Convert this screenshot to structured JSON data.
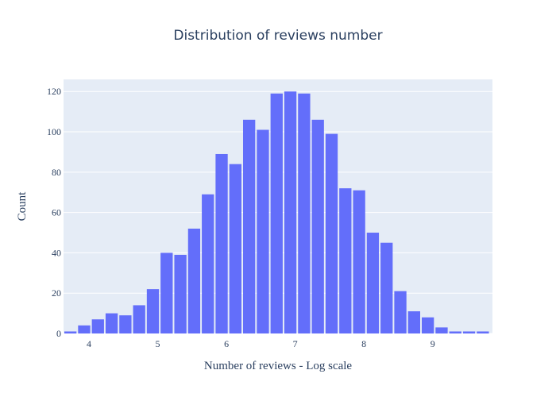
{
  "chart_data": {
    "type": "bar",
    "title": "Distribution of reviews number",
    "xlabel": "Number of reviews - Log scale",
    "ylabel": "Count",
    "xlim": [
      3.63,
      9.87
    ],
    "ylim": [
      0,
      126
    ],
    "bin_width": 0.2,
    "x_ticks": [
      4,
      5,
      6,
      7,
      8,
      9
    ],
    "y_ticks": [
      0,
      20,
      40,
      60,
      80,
      100,
      120
    ],
    "bins": [
      {
        "x0": 3.63,
        "x1": 3.83,
        "count": 1
      },
      {
        "x0": 3.83,
        "x1": 4.03,
        "count": 4
      },
      {
        "x0": 4.03,
        "x1": 4.23,
        "count": 7
      },
      {
        "x0": 4.23,
        "x1": 4.43,
        "count": 10
      },
      {
        "x0": 4.43,
        "x1": 4.63,
        "count": 9
      },
      {
        "x0": 4.63,
        "x1": 4.83,
        "count": 14
      },
      {
        "x0": 4.83,
        "x1": 5.03,
        "count": 22
      },
      {
        "x0": 5.03,
        "x1": 5.23,
        "count": 40
      },
      {
        "x0": 5.23,
        "x1": 5.43,
        "count": 39
      },
      {
        "x0": 5.43,
        "x1": 5.63,
        "count": 52
      },
      {
        "x0": 5.63,
        "x1": 5.83,
        "count": 69
      },
      {
        "x0": 5.83,
        "x1": 6.03,
        "count": 89
      },
      {
        "x0": 6.03,
        "x1": 6.23,
        "count": 84
      },
      {
        "x0": 6.23,
        "x1": 6.43,
        "count": 106
      },
      {
        "x0": 6.43,
        "x1": 6.63,
        "count": 101
      },
      {
        "x0": 6.63,
        "x1": 6.83,
        "count": 119
      },
      {
        "x0": 6.83,
        "x1": 7.03,
        "count": 120
      },
      {
        "x0": 7.03,
        "x1": 7.23,
        "count": 119
      },
      {
        "x0": 7.23,
        "x1": 7.43,
        "count": 106
      },
      {
        "x0": 7.43,
        "x1": 7.63,
        "count": 99
      },
      {
        "x0": 7.63,
        "x1": 7.83,
        "count": 72
      },
      {
        "x0": 7.83,
        "x1": 8.03,
        "count": 71
      },
      {
        "x0": 8.03,
        "x1": 8.23,
        "count": 50
      },
      {
        "x0": 8.23,
        "x1": 8.43,
        "count": 45
      },
      {
        "x0": 8.43,
        "x1": 8.63,
        "count": 21
      },
      {
        "x0": 8.63,
        "x1": 8.83,
        "count": 11
      },
      {
        "x0": 8.83,
        "x1": 9.03,
        "count": 8
      },
      {
        "x0": 9.03,
        "x1": 9.23,
        "count": 3
      },
      {
        "x0": 9.23,
        "x1": 9.43,
        "count": 1
      },
      {
        "x0": 9.43,
        "x1": 9.63,
        "count": 1
      },
      {
        "x0": 9.63,
        "x1": 9.83,
        "count": 1
      }
    ],
    "grid": true,
    "legend": false,
    "colors": {
      "bar": "#636efa",
      "plot_bg": "#e5ecf6",
      "grid": "#ffffff",
      "text": "#2a3f5f"
    }
  }
}
